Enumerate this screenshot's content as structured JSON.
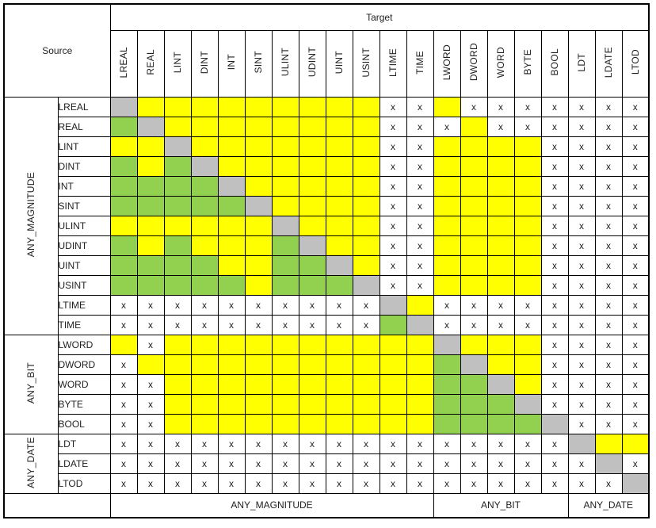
{
  "header": {
    "source_label": "Source",
    "target_label": "Target"
  },
  "columns": [
    "LREAL",
    "REAL",
    "LINT",
    "DINT",
    "INT",
    "SINT",
    "ULINT",
    "UDINT",
    "UINT",
    "USINT",
    "LTIME",
    "TIME",
    "LWORD",
    "DWORD",
    "WORD",
    "BYTE",
    "BOOL",
    "LDT",
    "LDATE",
    "LTOD"
  ],
  "groups": [
    {
      "label": "ANY_MAGNITUDE",
      "span": 12
    },
    {
      "label": "ANY_BIT",
      "span": 5
    },
    {
      "label": "ANY_DATE",
      "span": 3
    }
  ],
  "rows": [
    {
      "label": "LREAL",
      "cells": [
        "d",
        "y",
        "y",
        "y",
        "y",
        "y",
        "y",
        "y",
        "y",
        "y",
        "x",
        "x",
        "y",
        "x",
        "x",
        "x",
        "x",
        "x",
        "x",
        "x"
      ]
    },
    {
      "label": "REAL",
      "cells": [
        "g",
        "d",
        "y",
        "y",
        "y",
        "y",
        "y",
        "y",
        "y",
        "y",
        "x",
        "x",
        "x",
        "y",
        "x",
        "x",
        "x",
        "x",
        "x",
        "x"
      ]
    },
    {
      "label": "LINT",
      "cells": [
        "y",
        "y",
        "d",
        "y",
        "y",
        "y",
        "y",
        "y",
        "y",
        "y",
        "x",
        "x",
        "y",
        "y",
        "y",
        "y",
        "x",
        "x",
        "x",
        "x"
      ]
    },
    {
      "label": "DINT",
      "cells": [
        "g",
        "y",
        "g",
        "d",
        "y",
        "y",
        "y",
        "y",
        "y",
        "y",
        "x",
        "x",
        "y",
        "y",
        "y",
        "y",
        "x",
        "x",
        "x",
        "x"
      ]
    },
    {
      "label": "INT",
      "cells": [
        "g",
        "g",
        "g",
        "g",
        "d",
        "y",
        "y",
        "y",
        "y",
        "y",
        "x",
        "x",
        "y",
        "y",
        "y",
        "y",
        "x",
        "x",
        "x",
        "x"
      ]
    },
    {
      "label": "SINT",
      "cells": [
        "g",
        "g",
        "g",
        "g",
        "g",
        "d",
        "y",
        "y",
        "y",
        "y",
        "x",
        "x",
        "y",
        "y",
        "y",
        "y",
        "x",
        "x",
        "x",
        "x"
      ]
    },
    {
      "label": "ULINT",
      "cells": [
        "y",
        "y",
        "y",
        "y",
        "y",
        "y",
        "d",
        "y",
        "y",
        "y",
        "x",
        "x",
        "y",
        "y",
        "y",
        "y",
        "x",
        "x",
        "x",
        "x"
      ]
    },
    {
      "label": "UDINT",
      "cells": [
        "g",
        "y",
        "g",
        "y",
        "y",
        "y",
        "g",
        "d",
        "y",
        "y",
        "x",
        "x",
        "y",
        "y",
        "y",
        "y",
        "x",
        "x",
        "x",
        "x"
      ]
    },
    {
      "label": "UINT",
      "cells": [
        "g",
        "g",
        "g",
        "g",
        "y",
        "y",
        "g",
        "g",
        "d",
        "y",
        "x",
        "x",
        "y",
        "y",
        "y",
        "y",
        "x",
        "x",
        "x",
        "x"
      ]
    },
    {
      "label": "USINT",
      "cells": [
        "g",
        "g",
        "g",
        "g",
        "g",
        "y",
        "g",
        "g",
        "g",
        "d",
        "x",
        "x",
        "y",
        "y",
        "y",
        "y",
        "x",
        "x",
        "x",
        "x"
      ]
    },
    {
      "label": "LTIME",
      "cells": [
        "x",
        "x",
        "x",
        "x",
        "x",
        "x",
        "x",
        "x",
        "x",
        "x",
        "d",
        "y",
        "x",
        "x",
        "x",
        "x",
        "x",
        "x",
        "x",
        "x"
      ]
    },
    {
      "label": "TIME",
      "cells": [
        "x",
        "x",
        "x",
        "x",
        "x",
        "x",
        "x",
        "x",
        "x",
        "x",
        "g",
        "d",
        "x",
        "x",
        "x",
        "x",
        "x",
        "x",
        "x",
        "x"
      ]
    },
    {
      "label": "LWORD",
      "cells": [
        "y",
        "x",
        "y",
        "y",
        "y",
        "y",
        "y",
        "y",
        "y",
        "y",
        "y",
        "y",
        "d",
        "y",
        "y",
        "y",
        "x",
        "x",
        "x",
        "x"
      ]
    },
    {
      "label": "DWORD",
      "cells": [
        "x",
        "y",
        "y",
        "y",
        "y",
        "y",
        "y",
        "y",
        "y",
        "y",
        "y",
        "y",
        "g",
        "d",
        "y",
        "y",
        "x",
        "x",
        "x",
        "x"
      ]
    },
    {
      "label": "WORD",
      "cells": [
        "x",
        "x",
        "y",
        "y",
        "y",
        "y",
        "y",
        "y",
        "y",
        "y",
        "y",
        "y",
        "g",
        "g",
        "d",
        "y",
        "x",
        "x",
        "x",
        "x"
      ]
    },
    {
      "label": "BYTE",
      "cells": [
        "x",
        "x",
        "y",
        "y",
        "y",
        "y",
        "y",
        "y",
        "y",
        "y",
        "y",
        "y",
        "g",
        "g",
        "g",
        "d",
        "x",
        "x",
        "x",
        "x"
      ]
    },
    {
      "label": "BOOL",
      "cells": [
        "x",
        "x",
        "y",
        "y",
        "y",
        "y",
        "y",
        "y",
        "y",
        "y",
        "y",
        "y",
        "g",
        "g",
        "g",
        "g",
        "d",
        "x",
        "x",
        "x"
      ]
    },
    {
      "label": "LDT",
      "cells": [
        "x",
        "x",
        "x",
        "x",
        "x",
        "x",
        "x",
        "x",
        "x",
        "x",
        "x",
        "x",
        "x",
        "x",
        "x",
        "x",
        "x",
        "d",
        "y",
        "y"
      ]
    },
    {
      "label": "LDATE",
      "cells": [
        "x",
        "x",
        "x",
        "x",
        "x",
        "x",
        "x",
        "x",
        "x",
        "x",
        "x",
        "x",
        "x",
        "x",
        "x",
        "x",
        "x",
        "x",
        "d",
        "x"
      ]
    },
    {
      "label": "LTOD",
      "cells": [
        "x",
        "x",
        "x",
        "x",
        "x",
        "x",
        "x",
        "x",
        "x",
        "x",
        "x",
        "x",
        "x",
        "x",
        "x",
        "x",
        "x",
        "x",
        "x",
        "d"
      ]
    }
  ],
  "footer_spans": [
    {
      "label": "ANY_MAGNITUDE",
      "span": 12
    },
    {
      "label": "ANY_BIT",
      "span": 5
    },
    {
      "label": "ANY_DATE",
      "span": 3
    }
  ],
  "x_mark": "x",
  "colors": {
    "gray_diagonal": "#C0C0C0",
    "yellow": "#FFFF00",
    "green": "#92D050",
    "border": "#000000",
    "x_text": "#1F1F1F"
  },
  "layout": {
    "group_col_width": 68,
    "label_col_width": 66,
    "data_col_width": 34
  }
}
